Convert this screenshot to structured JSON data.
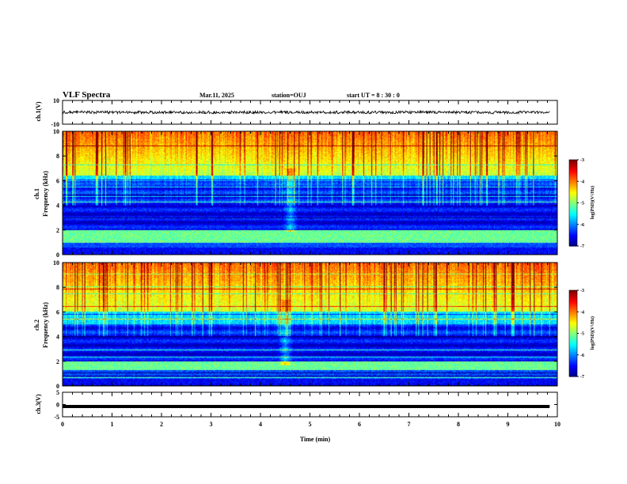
{
  "header": {
    "title": "VLF Spectra",
    "date": "Mar.11, 2025",
    "station": "station=OUJ",
    "start": "start  UT  =   8  : 30 : 0"
  },
  "colors": {
    "spectrogram_scale": [
      "#000080",
      "#0000ff",
      "#00c8ff",
      "#00ff80",
      "#ffff00",
      "#ff8000",
      "#ff0000",
      "#ffffff"
    ],
    "trace": "#000000"
  },
  "chart_data": [
    {
      "type": "line",
      "panel": "ch1-waveform",
      "ylabel": "ch.1(V)",
      "ylim": [
        -10,
        10
      ],
      "yticks": [
        "10",
        "-10"
      ],
      "x_range_min": [
        0,
        9.85
      ],
      "approx_level": 0,
      "noise_amplitude_v": 1.2
    },
    {
      "type": "heatmap",
      "panel": "ch1-spectrogram",
      "ylabel": [
        "ch.1",
        "Frequency  (kHz)"
      ],
      "ylim": [
        0,
        10
      ],
      "yticks": [
        "0",
        "2",
        "4",
        "6",
        "8",
        "10"
      ],
      "x_range_min": [
        0,
        9.85
      ],
      "colorbar": {
        "label": "log(PSD)(V²/Hz)",
        "range": [
          -7,
          -3
        ],
        "ticks": [
          "-3",
          "-4",
          "-5",
          "-6",
          "-7"
        ]
      },
      "features": {
        "strong_band_khz": [
          1.0,
          2.0
        ],
        "upper_band_khz": [
          6.5,
          10
        ],
        "dark_bands_khz": [
          2.0,
          6.0
        ],
        "bright_spot_min_khz": [
          4.5,
          2.2
        ]
      }
    },
    {
      "type": "heatmap",
      "panel": "ch2-spectrogram",
      "ylabel": [
        "ch.2",
        "Frequency  (kHz)"
      ],
      "ylim": [
        0,
        10
      ],
      "yticks": [
        "0",
        "2",
        "4",
        "6",
        "8",
        "10"
      ],
      "x_range_min": [
        0,
        9.85
      ],
      "colorbar": {
        "label": "log(PSD)(V²/Hz)",
        "range": [
          -7,
          -3
        ],
        "ticks": [
          "-3",
          "-4",
          "-5",
          "-6",
          "-7"
        ]
      },
      "features": {
        "strong_band_khz": [
          1.3,
          2.0
        ],
        "upper_band_khz": [
          6.0,
          10
        ],
        "dark_bands_khz": [
          2.0,
          5.0
        ],
        "bright_spot_min_khz": [
          4.4,
          2.0
        ]
      }
    },
    {
      "type": "line",
      "panel": "ch3-waveform",
      "ylabel": "ch.3(V)",
      "ylim": [
        -5,
        5
      ],
      "yticks": [
        "5",
        "0",
        "-5"
      ],
      "x_range_min": [
        0,
        9.85
      ],
      "approx_level": -0.8
    }
  ],
  "xaxis": {
    "label": "Time  (min)",
    "ticks": [
      "0",
      "1",
      "2",
      "3",
      "4",
      "5",
      "6",
      "7",
      "8",
      "9",
      "10"
    ],
    "range": [
      0,
      10
    ]
  }
}
